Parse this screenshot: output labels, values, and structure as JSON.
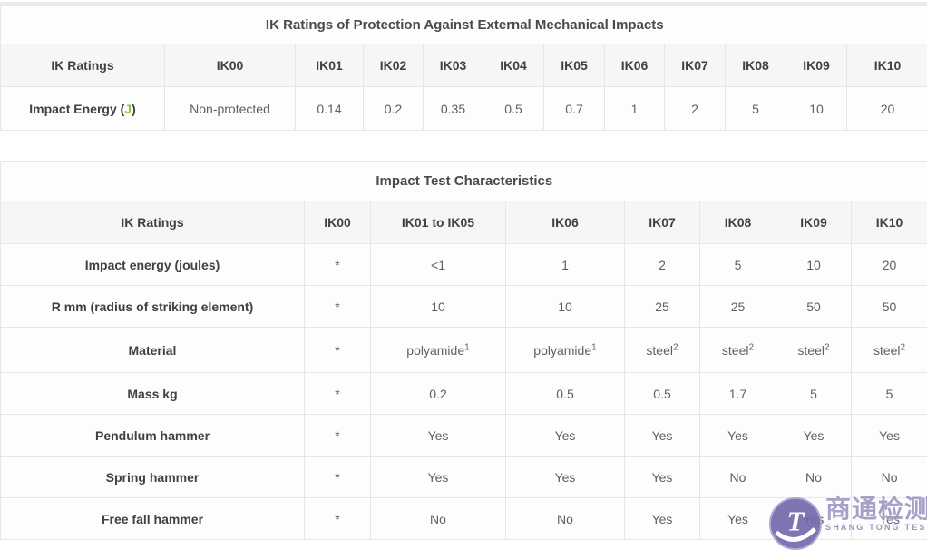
{
  "colors": {
    "accent_green": "#8fc43f",
    "header_text": "#3e4145",
    "cell_text": "#5c6066",
    "border": "#e6e6e6",
    "header_bg": "#f6f6f7",
    "watermark_purple": "#736bac",
    "watermark_text_cn": "#a09ac4",
    "watermark_text_en": "#938cba"
  },
  "table1": {
    "title": "IK Ratings of Protection Against External Mechanical Impacts",
    "columns": [
      "IK Ratings",
      "IK00",
      "IK01",
      "IK02",
      "IK03",
      "IK04",
      "IK05",
      "IK06",
      "IK07",
      "IK08",
      "IK09",
      "IK10"
    ],
    "row": {
      "label_prefix": "Impact Energy (",
      "label_unit": "J",
      "label_suffix": ")",
      "values": [
        "Non-protected",
        "0.14",
        "0.2",
        "0.35",
        "0.5",
        "0.7",
        "1",
        "2",
        "5",
        "10",
        "20"
      ]
    }
  },
  "table2": {
    "title": "Impact Test Characteristics",
    "columns": [
      "IK Ratings",
      "IK00",
      "IK01 to IK05",
      "IK06",
      "IK07",
      "IK08",
      "IK09",
      "IK10"
    ],
    "rows": [
      {
        "label": "Impact energy (joules)",
        "values": [
          "*",
          "<1",
          "1",
          "2",
          "5",
          "10",
          "20"
        ]
      },
      {
        "label": "R mm (radius of striking element)",
        "values": [
          "*",
          "10",
          "10",
          "25",
          "25",
          "50",
          "50"
        ]
      },
      {
        "label": "Material",
        "tall": true,
        "values": [
          "*",
          "polyamide|1",
          "polyamide|1",
          "steel|2",
          "steel|2",
          "steel|2",
          "steel|2"
        ]
      },
      {
        "label": "Mass kg",
        "values": [
          "*",
          "0.2",
          "0.5",
          "0.5",
          "1.7",
          "5",
          "5"
        ]
      },
      {
        "label": "Pendulum hammer",
        "values": [
          "*",
          "Yes",
          "Yes",
          "Yes",
          "Yes",
          "Yes",
          "Yes"
        ]
      },
      {
        "label": "Spring hammer",
        "values": [
          "*",
          "Yes",
          "Yes",
          "Yes",
          "No",
          "No",
          "No"
        ]
      },
      {
        "label": "Free fall hammer",
        "values": [
          "*",
          "No",
          "No",
          "Yes",
          "Yes",
          "Yes",
          "Yes"
        ]
      }
    ]
  },
  "watermark": {
    "logo_glyph": "T",
    "name_cn": "商通检测",
    "name_en": "SHANG TONG TESTING"
  }
}
